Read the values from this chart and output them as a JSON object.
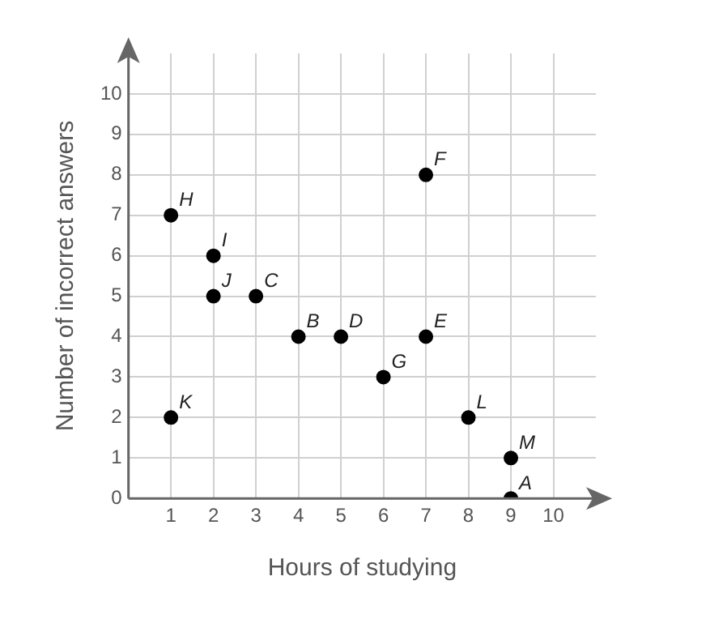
{
  "chart_data": {
    "type": "scatter",
    "xlabel": "Hours of studying",
    "ylabel": "Number of incorrect answers",
    "x": [
      9,
      4,
      3,
      5,
      7,
      7,
      6,
      1,
      2,
      2,
      1,
      8,
      9
    ],
    "series": [
      {
        "color": "#000000",
        "values": [
          0,
          4,
          5,
          4,
          4,
          8,
          3,
          7,
          6,
          5,
          2,
          2,
          1
        ]
      }
    ],
    "annotations": [
      {
        "text": "A",
        "x": 9,
        "y": 0
      },
      {
        "text": "B",
        "x": 4,
        "y": 4
      },
      {
        "text": "C",
        "x": 3,
        "y": 5
      },
      {
        "text": "D",
        "x": 5,
        "y": 4
      },
      {
        "text": "E",
        "x": 7,
        "y": 4
      },
      {
        "text": "F",
        "x": 7,
        "y": 8
      },
      {
        "text": "G",
        "x": 6,
        "y": 3
      },
      {
        "text": "H",
        "x": 1,
        "y": 7
      },
      {
        "text": "I",
        "x": 2,
        "y": 6
      },
      {
        "text": "J",
        "x": 2,
        "y": 5
      },
      {
        "text": "K",
        "x": 1,
        "y": 2
      },
      {
        "text": "L",
        "x": 8,
        "y": 2
      },
      {
        "text": "M",
        "x": 9,
        "y": 1
      }
    ],
    "xlim": [
      0,
      11
    ],
    "ylim": [
      0,
      11
    ],
    "xticks": [
      1,
      2,
      3,
      4,
      5,
      6,
      7,
      8,
      9,
      10
    ],
    "yticks": [
      0,
      1,
      2,
      3,
      4,
      5,
      6,
      7,
      8,
      9,
      10
    ],
    "grid": true,
    "legend": false,
    "marker": "circle"
  }
}
